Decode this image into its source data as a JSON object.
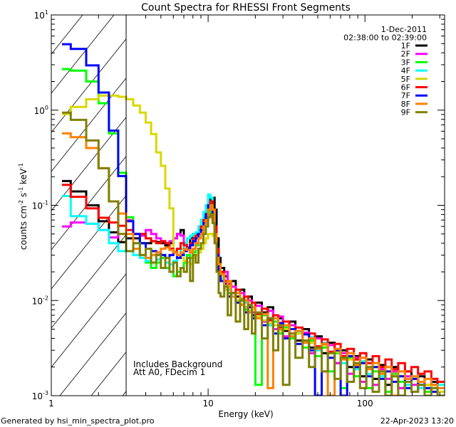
{
  "chart_data": {
    "type": "line",
    "title": "Count Spectra for RHESSI Front Segments",
    "xlabel": "Energy (keV)",
    "ylabel": {
      "base": "counts cm",
      "e1": "-2",
      "s": " s",
      "e2": "-1",
      "k": " keV",
      "e3": "-1"
    },
    "xscale": "log",
    "yscale": "log",
    "xlim": [
      1,
      322
    ],
    "ylim": [
      0.001,
      10
    ],
    "x_ticks": [
      {
        "value": 1,
        "label": "1"
      },
      {
        "value": 10,
        "label": "10"
      },
      {
        "value": 100,
        "label": "100"
      }
    ],
    "y_ticks": [
      {
        "value": 10,
        "base": "10",
        "exp": "1"
      },
      {
        "value": 1,
        "base": "10",
        "exp": "0"
      },
      {
        "value": 0.1,
        "base": "10",
        "exp": "-1"
      },
      {
        "value": 0.01,
        "base": "10",
        "exp": "-2"
      },
      {
        "value": 0.001,
        "base": "10",
        "exp": "-3"
      }
    ],
    "grid": false,
    "legend_placement": "top-right",
    "legend_header": [
      "1-Dec-2011",
      "02:38:00 to 02:39:00"
    ],
    "annotations": [
      "Includes Background",
      "Att A0, FDecim 1"
    ],
    "shaded_region_keV": [
      1,
      3
    ],
    "bin_edges_keV": [
      1.17,
      1.33,
      1.67,
      2,
      2.33,
      2.67,
      3,
      3.33,
      3.67,
      4,
      4.33,
      4.67,
      5,
      5.33,
      5.67,
      6,
      6.33,
      6.67,
      7,
      7.33,
      7.67,
      8,
      8.33,
      8.67,
      9,
      9.33,
      9.67,
      10,
      10.33,
      10.67,
      11,
      11.33,
      11.67,
      12,
      12.67,
      13.33,
      14,
      15,
      16,
      17,
      18,
      19,
      20,
      22,
      24,
      26,
      28,
      30,
      33,
      36,
      40,
      44,
      48,
      53,
      58,
      64,
      70,
      77,
      85,
      93,
      102,
      112,
      123,
      135,
      148,
      163,
      180,
      198,
      218,
      240,
      265,
      290,
      320
    ],
    "series": [
      {
        "name": "1F",
        "color": "#000000",
        "values": [
          0.18,
          0.14,
          0.1,
          0.068,
          0.052,
          0.041,
          0.045,
          0.045,
          0.04,
          0.04,
          0.042,
          0.041,
          0.04,
          0.038,
          0.04,
          0.045,
          0.05,
          0.055,
          0.04,
          0.035,
          0.045,
          0.05,
          0.05,
          0.055,
          0.07,
          0.075,
          0.085,
          0.1,
          0.12,
          0.12,
          0.09,
          0.045,
          0.028,
          0.022,
          0.018,
          0.014,
          0.016,
          0.011,
          0.013,
          0.0085,
          0.011,
          0.007,
          0.0095,
          0.0075,
          0.0085,
          0.0055,
          0.0065,
          0.0048,
          0.006,
          0.0038,
          0.005,
          0.0032,
          0.0042,
          0.0028,
          0.0036,
          0.0022,
          0.003,
          0.002,
          0.0026,
          0.0016,
          0.0024,
          0.0015,
          0.0021,
          0.0013,
          0.002,
          0.0012,
          0.0018,
          0.0011,
          0.0016,
          0.0012,
          0.0014,
          0.0011
        ]
      },
      {
        "name": "2F",
        "color": "#ff00ff",
        "values": [
          0.06,
          0.066,
          0.064,
          0.055,
          0.046,
          0.082,
          0.07,
          0.05,
          0.048,
          0.055,
          0.05,
          0.045,
          0.042,
          0.04,
          0.042,
          0.045,
          0.05,
          0.048,
          0.04,
          0.035,
          0.032,
          0.035,
          0.04,
          0.05,
          0.055,
          0.06,
          0.07,
          0.08,
          0.09,
          0.07,
          0.05,
          0.03,
          0.022,
          0.018,
          0.02,
          0.012,
          0.014,
          0.01,
          0.012,
          0.0085,
          0.01,
          0.0075,
          0.0088,
          0.006,
          0.0078,
          0.005,
          0.0068,
          0.0042,
          0.0055,
          0.0035,
          0.0046,
          0.0028,
          0.004,
          0.0018,
          0.0034,
          0.0022,
          0.0028,
          0.0017,
          0.0025,
          0.0014,
          0.0022,
          0.0013,
          0.0019,
          0.0015,
          0.0018,
          0.0012,
          0.0016,
          0.0013,
          0.0014,
          0.0011,
          0.0013,
          0.001
        ]
      },
      {
        "name": "3F",
        "color": "#00ff00",
        "values": [
          2.7,
          2.6,
          2.0,
          1.18,
          0.57,
          0.22,
          0.075,
          0.04,
          0.03,
          0.025,
          0.022,
          0.025,
          0.028,
          0.022,
          0.02,
          0.018,
          0.02,
          0.022,
          0.025,
          0.03,
          0.028,
          0.032,
          0.038,
          0.045,
          0.05,
          0.055,
          0.07,
          0.08,
          0.1,
          0.09,
          0.05,
          0.028,
          0.02,
          0.016,
          0.015,
          0.012,
          0.012,
          0.0095,
          0.0105,
          0.008,
          0.009,
          0.0065,
          0.0013,
          0.007,
          0.0062,
          0.006,
          0.0045,
          0.0052,
          0.004,
          0.0045,
          0.0032,
          0.0038,
          0.0026,
          0.0032,
          0.0018,
          0.0028,
          0.0012,
          0.0025,
          0.0016,
          0.0022,
          0.0012,
          0.0018,
          0.0016,
          0.0011,
          0.0017,
          0.0014,
          0.0012,
          0.0015,
          0.0013,
          0.0011,
          0.0013,
          0.001
        ]
      },
      {
        "name": "4F",
        "color": "#00ffff",
        "values": [
          0.125,
          0.077,
          0.064,
          0.055,
          0.04,
          0.033,
          0.033,
          0.03,
          0.028,
          0.026,
          0.025,
          0.027,
          0.03,
          0.025,
          0.024,
          0.026,
          0.03,
          0.035,
          0.04,
          0.045,
          0.048,
          0.05,
          0.052,
          0.06,
          0.07,
          0.085,
          0.1,
          0.13,
          0.12,
          0.09,
          0.05,
          0.028,
          0.02,
          0.017,
          0.014,
          0.013,
          0.011,
          0.012,
          0.009,
          0.0095,
          0.0078,
          0.0085,
          0.0068,
          0.0072,
          0.0055,
          0.0065,
          0.0048,
          0.0055,
          0.0042,
          0.0047,
          0.0036,
          0.0041,
          0.003,
          0.0036,
          0.0025,
          0.003,
          0.0022,
          0.0026,
          0.0019,
          0.0023,
          0.0017,
          0.002,
          0.0016,
          0.0018,
          0.0014,
          0.0016,
          0.0013,
          0.0015,
          0.0012,
          0.0013,
          0.0011,
          0.0013
        ]
      },
      {
        "name": "5F",
        "color": "#d8d800",
        "values": [
          0.91,
          1.08,
          1.3,
          1.42,
          1.42,
          1.38,
          1.3,
          1.12,
          0.94,
          0.74,
          0.56,
          0.36,
          0.26,
          0.15,
          0.093,
          0.033,
          0.03,
          0.028,
          0.026,
          0.025,
          0.024,
          0.028,
          0.03,
          0.032,
          0.035,
          0.04,
          0.045,
          0.05,
          0.05,
          0.048,
          0.04,
          0.03,
          0.022,
          0.018,
          0.013,
          0.014,
          0.011,
          0.01,
          0.0092,
          0.0085,
          0.0078,
          0.008,
          0.0068,
          0.0062,
          0.0058,
          0.0055,
          0.0048,
          0.005,
          0.0042,
          0.0045,
          0.0038,
          0.0036,
          0.0032,
          0.0034,
          0.0028,
          0.0029,
          0.0025,
          0.0024,
          0.0021,
          0.0022,
          0.0019,
          0.002,
          0.0017,
          0.0018,
          0.0016,
          0.0016,
          0.0014,
          0.0015,
          0.0013,
          0.0013,
          0.0012,
          0.0011
        ]
      },
      {
        "name": "6F",
        "color": "#ff0000",
        "values": [
          0.164,
          0.123,
          0.093,
          0.074,
          0.066,
          0.061,
          0.055,
          0.05,
          0.05,
          0.045,
          0.042,
          0.04,
          0.042,
          0.04,
          0.035,
          0.032,
          0.035,
          0.04,
          0.038,
          0.036,
          0.04,
          0.045,
          0.048,
          0.05,
          0.06,
          0.07,
          0.08,
          0.1,
          0.11,
          0.09,
          0.06,
          0.035,
          0.024,
          0.02,
          0.016,
          0.015,
          0.012,
          0.013,
          0.01,
          0.011,
          0.0085,
          0.0095,
          0.0072,
          0.0082,
          0.0062,
          0.007,
          0.0052,
          0.006,
          0.0045,
          0.0052,
          0.0038,
          0.0045,
          0.0033,
          0.0039,
          0.0029,
          0.0035,
          0.0026,
          0.0031,
          0.0024,
          0.0028,
          0.0022,
          0.0026,
          0.002,
          0.0024,
          0.0019,
          0.0022,
          0.0018,
          0.002,
          0.0017,
          0.0018,
          0.0015,
          0.0014
        ]
      },
      {
        "name": "7F",
        "color": "#0000ff",
        "values": [
          4.93,
          4.4,
          2.95,
          1.53,
          0.61,
          0.203,
          0.068,
          0.05,
          0.04,
          0.035,
          0.033,
          0.032,
          0.03,
          0.028,
          0.03,
          0.032,
          0.028,
          0.03,
          0.033,
          0.035,
          0.038,
          0.042,
          0.045,
          0.05,
          0.055,
          0.065,
          0.08,
          0.1,
          0.1,
          0.08,
          0.05,
          0.03,
          0.02,
          0.016,
          0.015,
          0.011,
          0.012,
          0.0095,
          0.01,
          0.0075,
          0.0085,
          0.0065,
          0.0075,
          0.0055,
          0.0065,
          0.0045,
          0.0058,
          0.004,
          0.005,
          0.0035,
          0.0044,
          0.003,
          0.0009,
          0.0035,
          0.0025,
          0.003,
          0.0009,
          0.0026,
          0.002,
          0.0022,
          0.0016,
          0.002,
          0.0015,
          0.0018,
          0.0014,
          0.0016,
          0.0012,
          0.0015,
          0.0013,
          0.0012,
          0.0011,
          0.001
        ]
      },
      {
        "name": "8F",
        "color": "#ff8000",
        "values": [
          0.57,
          0.52,
          0.4,
          0.245,
          0.11,
          0.082,
          0.05,
          0.035,
          0.03,
          0.028,
          0.03,
          0.032,
          0.035,
          0.036,
          0.034,
          0.032,
          0.03,
          0.032,
          0.035,
          0.034,
          0.032,
          0.035,
          0.04,
          0.045,
          0.05,
          0.06,
          0.07,
          0.09,
          0.1,
          0.09,
          0.05,
          0.028,
          0.024,
          0.019,
          0.014,
          0.016,
          0.011,
          0.012,
          0.009,
          0.01,
          0.0075,
          0.0085,
          0.0065,
          0.0072,
          0.0012,
          0.0065,
          0.005,
          0.0055,
          0.0042,
          0.0048,
          0.0036,
          0.004,
          0.0031,
          0.0035,
          0.0009,
          0.0031,
          0.0024,
          0.0028,
          0.0021,
          0.0025,
          0.0019,
          0.0022,
          0.0017,
          0.002,
          0.0009,
          0.0018,
          0.0015,
          0.0016,
          0.0014,
          0.0015,
          0.0013,
          0.0012
        ]
      },
      {
        "name": "9F",
        "color": "#808000",
        "values": [
          0.94,
          0.79,
          0.48,
          0.245,
          0.11,
          0.05,
          0.033,
          0.04,
          0.03,
          0.035,
          0.025,
          0.03,
          0.022,
          0.028,
          0.02,
          0.025,
          0.018,
          0.022,
          0.02,
          0.028,
          0.016,
          0.03,
          0.025,
          0.035,
          0.04,
          0.05,
          0.06,
          0.075,
          0.08,
          0.065,
          0.04,
          0.02,
          0.012,
          0.011,
          0.014,
          0.007,
          0.012,
          0.006,
          0.01,
          0.005,
          0.009,
          0.0045,
          0.0075,
          0.004,
          0.0065,
          0.003,
          0.0055,
          0.0013,
          0.0045,
          0.0025,
          0.0038,
          0.002,
          0.0032,
          0.0018,
          0.0028,
          0.0015,
          0.0025,
          0.0014,
          0.0022,
          0.0012,
          0.002,
          0.0011,
          0.0018,
          0.001,
          0.0016,
          0.001,
          0.0014,
          0.0011,
          0.0013,
          0.001,
          0.0012,
          0.001
        ]
      }
    ]
  },
  "footer": {
    "generated_by": "Generated by hsi_min_spectra_plot.pro",
    "timestamp": "22-Apr-2023 13:20"
  }
}
